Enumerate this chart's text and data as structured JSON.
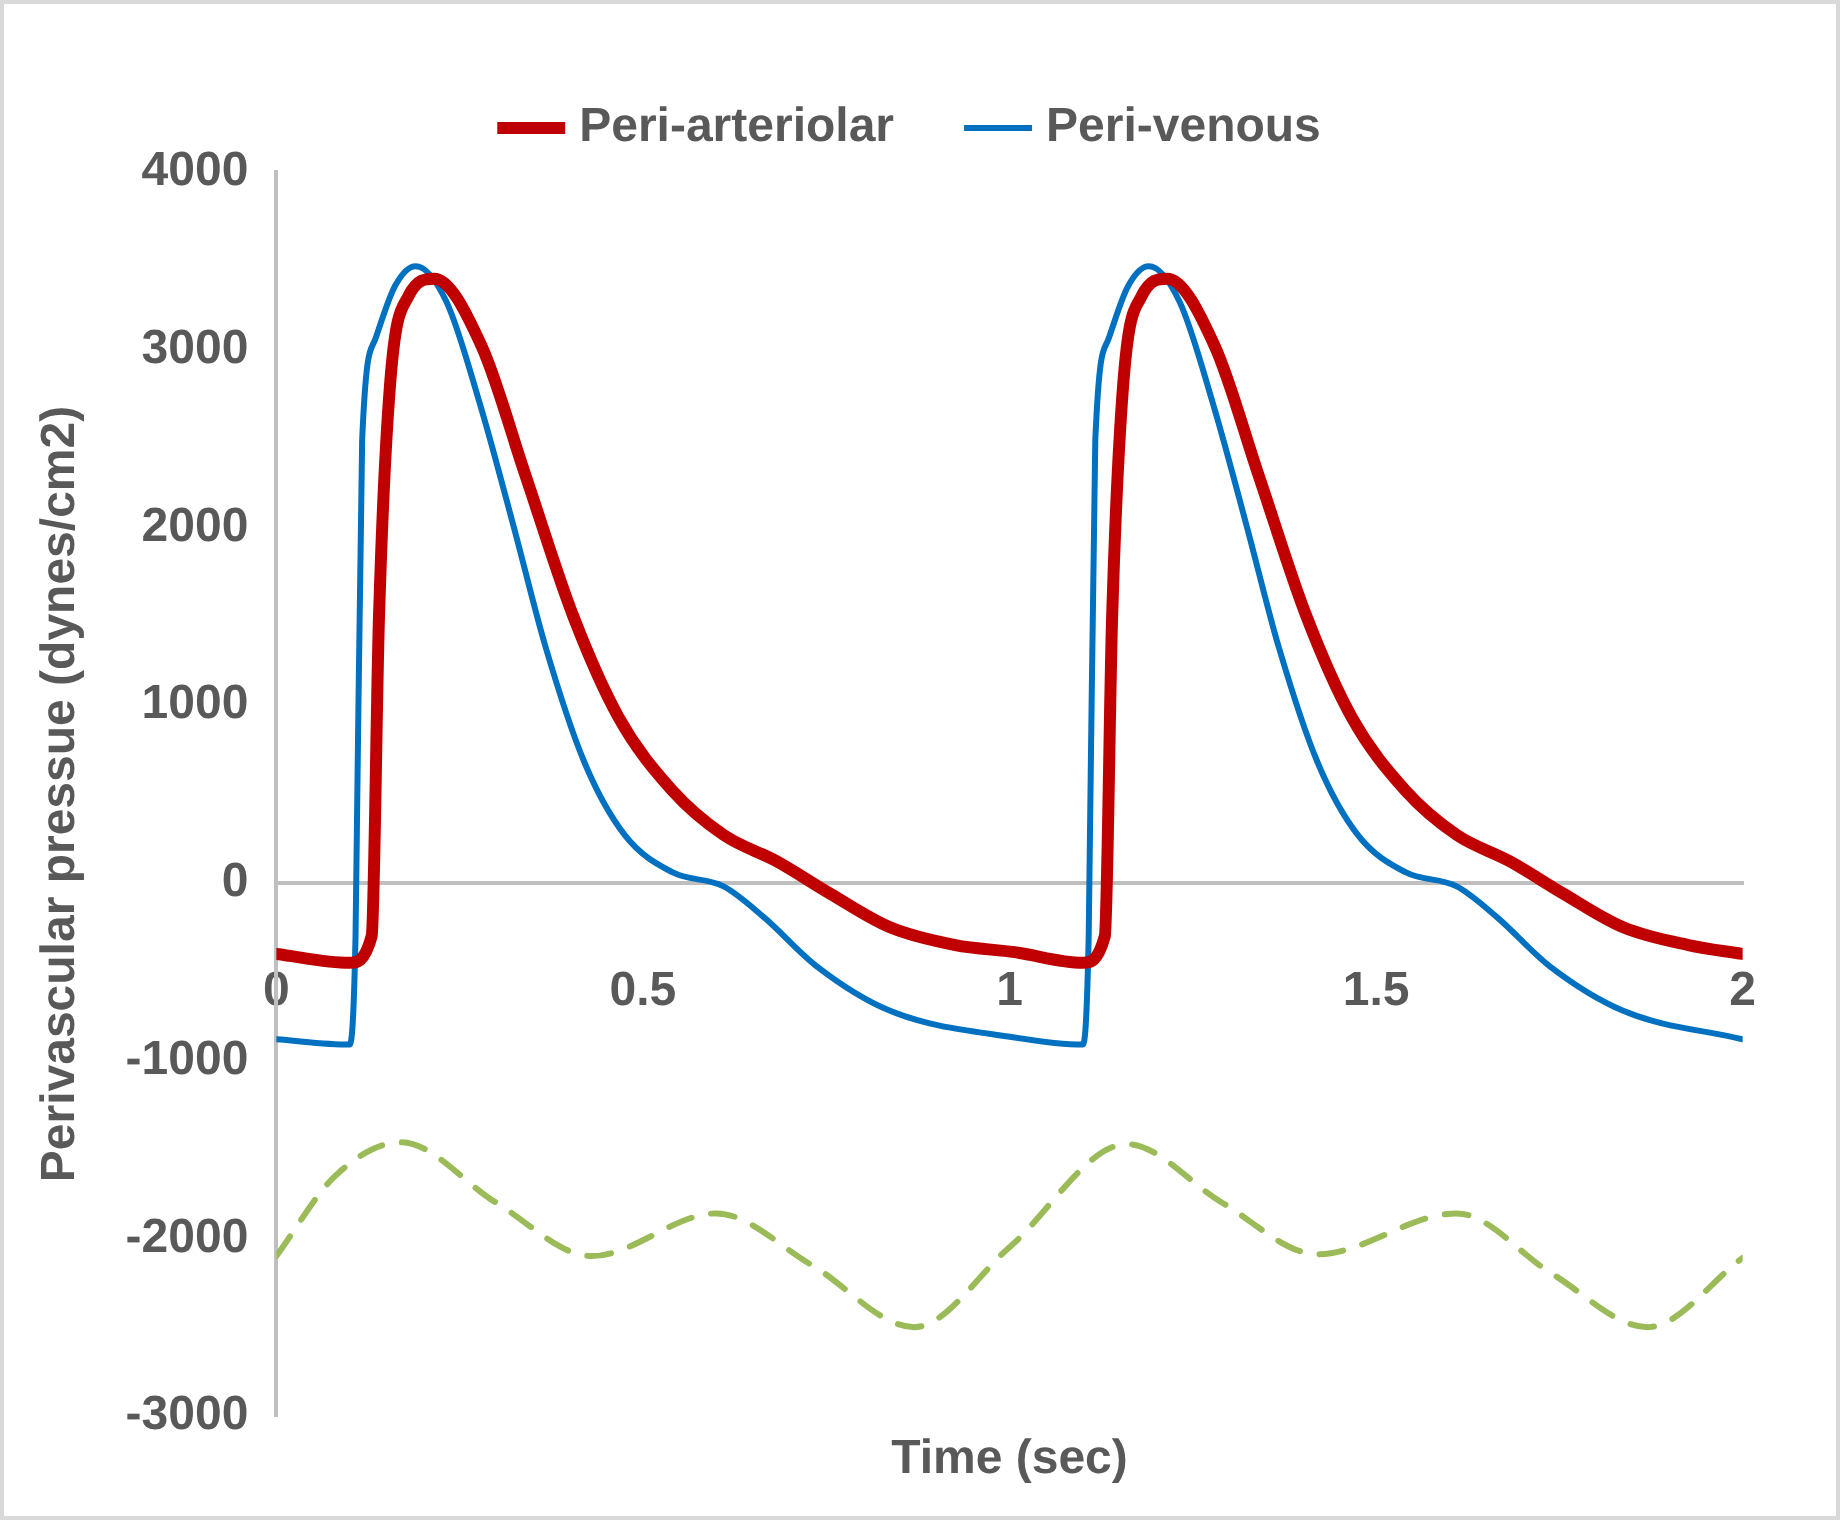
{
  "chart_data": {
    "type": "line",
    "xlabel": "Time (sec)",
    "ylabel": "Perivascular pressue (dynes/cm2)",
    "xlim": [
      0,
      2
    ],
    "xticks": [
      0,
      0.5,
      1,
      1.5,
      2
    ],
    "ylim": [
      -3000,
      4000
    ],
    "yticks": [
      -3000,
      -2000,
      -1000,
      0,
      1000,
      2000,
      3000,
      4000
    ],
    "grid": false,
    "legend": "top",
    "marker": "none",
    "series": [
      {
        "name": "Peri-arteriolar",
        "color": "#c00000",
        "line_style": "solid",
        "x": [
          0,
          0.1,
          0.13,
          0.14,
          0.155,
          0.18,
          0.215,
          0.28,
          0.34,
          0.405,
          0.467,
          0.54,
          0.61,
          0.683,
          0.755,
          0.837,
          0.926,
          1.007,
          1.1,
          1.13,
          1.14,
          1.155,
          1.18,
          1.215,
          1.28,
          1.34,
          1.405,
          1.467,
          1.54,
          1.61,
          1.683,
          1.755,
          1.837,
          1.926,
          2
        ],
        "values": [
          -400,
          -450,
          -300,
          1500,
          2800,
          3300,
          3400,
          3020,
          2290,
          1500,
          930,
          520,
          270,
          120,
          -60,
          -250,
          -350,
          -390,
          -450,
          -300,
          1500,
          2800,
          3300,
          3400,
          3020,
          2290,
          1500,
          930,
          520,
          270,
          120,
          -60,
          -250,
          -350,
          -400
        ]
      },
      {
        "name": "Peri-venous",
        "color": "#0070c0",
        "line_style": "solid",
        "x": [
          0,
          0.1,
          0.108,
          0.117,
          0.135,
          0.162,
          0.19,
          0.232,
          0.278,
          0.324,
          0.367,
          0.42,
          0.475,
          0.54,
          0.61,
          0.664,
          0.737,
          0.837,
          1.007,
          1.1,
          1.108,
          1.117,
          1.135,
          1.162,
          1.19,
          1.232,
          1.278,
          1.324,
          1.367,
          1.42,
          1.475,
          1.54,
          1.61,
          1.664,
          1.737,
          1.837,
          2
        ],
        "values": [
          -880,
          -910,
          -300,
          2490,
          3060,
          3360,
          3470,
          3270,
          2690,
          2000,
          1330,
          680,
          270,
          60,
          -20,
          -190,
          -470,
          -720,
          -870,
          -910,
          -300,
          2490,
          3060,
          3360,
          3470,
          3270,
          2690,
          2000,
          1330,
          680,
          270,
          60,
          -20,
          -190,
          -470,
          -720,
          -880
        ]
      },
      {
        "color": "#9bbb59",
        "line_style": "dashed",
        "x": [
          0,
          0.08,
          0.17,
          0.3,
          0.43,
          0.6,
          0.73,
          0.87,
          1.0,
          1.16,
          1.29,
          1.42,
          1.61,
          1.74,
          1.87,
          2
        ],
        "values": [
          -2100,
          -1650,
          -1460,
          -1800,
          -2100,
          -1860,
          -2150,
          -2500,
          -2050,
          -1470,
          -1800,
          -2090,
          -1860,
          -2200,
          -2500,
          -2110
        ]
      }
    ]
  }
}
